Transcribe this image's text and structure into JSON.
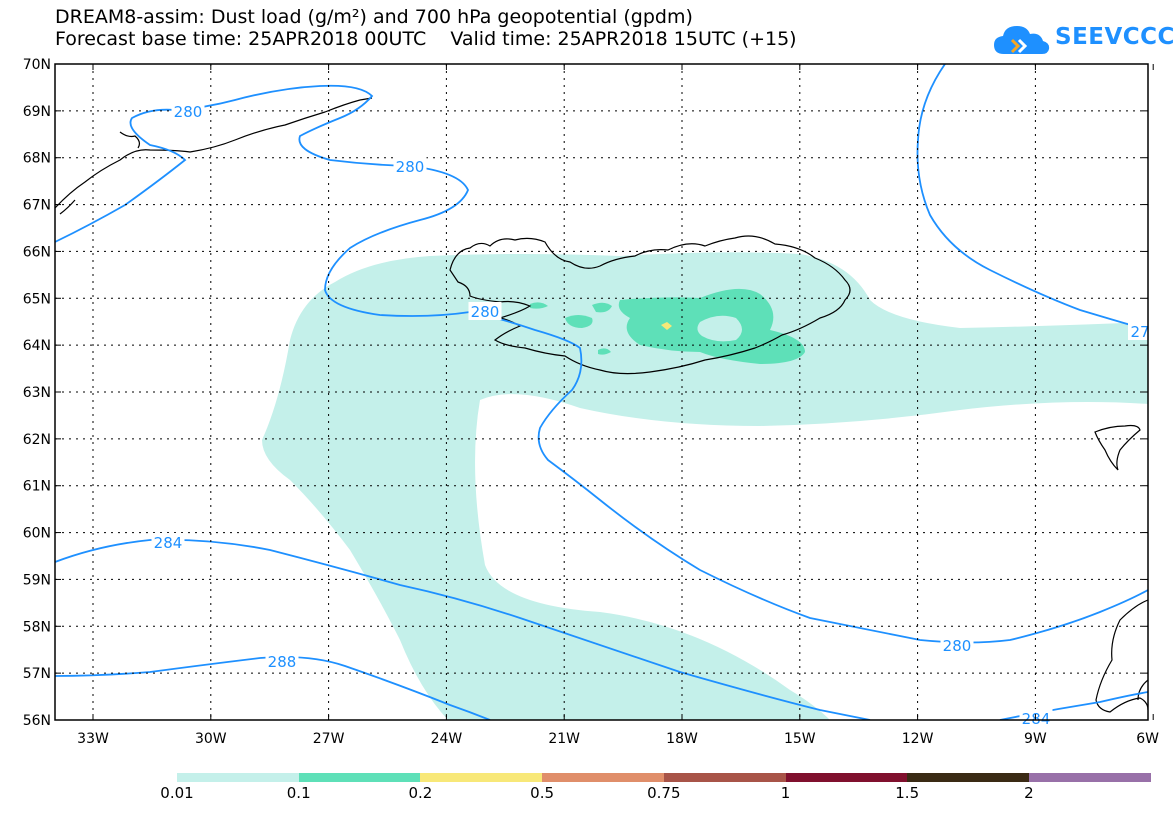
{
  "header": {
    "line1": "DREAM8-assim: Dust load (g/m²) and 700 hPa geopotential (gpdm)",
    "line2": "Forecast base time: 25APR2018 00UTC    Valid time: 25APR2018 15UTC (+15)"
  },
  "logo": {
    "text": "SEEVCCC",
    "color": "#1e90ff",
    "icon": "cloud-logo-icon"
  },
  "axes": {
    "lat_labels": [
      "70N",
      "69N",
      "68N",
      "67N",
      "66N",
      "65N",
      "64N",
      "63N",
      "62N",
      "61N",
      "60N",
      "59N",
      "58N",
      "57N",
      "56N"
    ],
    "lon_labels": [
      "33W",
      "30W",
      "27W",
      "24W",
      "21W",
      "18W",
      "15W",
      "12W",
      "9W",
      "6W"
    ]
  },
  "contour_labels": [
    "280",
    "280",
    "280",
    "27",
    "284",
    "288",
    "280",
    "284"
  ],
  "contour_color": "#1e90ff",
  "legend": {
    "labels": [
      "0.01",
      "0.1",
      "0.2",
      "0.5",
      "0.75",
      "1",
      "1.5",
      "2"
    ],
    "colors": [
      "#c4f0ea",
      "#5ee0b8",
      "#f8e878",
      "#e08e6a",
      "#a85448",
      "#80102e",
      "#3a2a14",
      "#9870a8"
    ]
  },
  "land_color": "#000000"
}
